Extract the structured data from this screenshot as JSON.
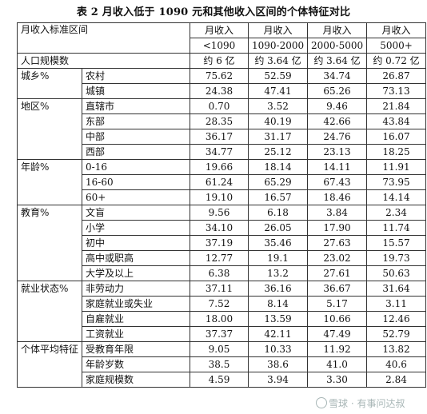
{
  "title": "表 2 月收入低于 1090 元和其他收入区间的个体特征对比",
  "header": {
    "label": "月收入标准区间",
    "cols": [
      {
        "l1": "月收入",
        "l2": "<1090"
      },
      {
        "l1": "月收入",
        "l2": "1090-2000"
      },
      {
        "l1": "月收入",
        "l2": "2000-5000"
      },
      {
        "l1": "月收入",
        "l2": "5000+"
      }
    ]
  },
  "population": {
    "label": "人口规模数",
    "values": [
      "约 6 亿",
      "约 3.64 亿",
      "约 3.64 亿",
      "约 0.72 亿"
    ]
  },
  "groups": [
    {
      "name": "城乡%",
      "rows": [
        {
          "label": "农村",
          "values": [
            "75.62",
            "52.59",
            "34.74",
            "26.87"
          ]
        },
        {
          "label": "城镇",
          "values": [
            "24.38",
            "47.41",
            "65.26",
            "73.13"
          ]
        }
      ]
    },
    {
      "name": "地区%",
      "rows": [
        {
          "label": "直辖市",
          "values": [
            "0.70",
            "3.52",
            "9.46",
            "21.84"
          ]
        },
        {
          "label": "东部",
          "values": [
            "28.35",
            "40.19",
            "42.66",
            "43.84"
          ]
        },
        {
          "label": "中部",
          "values": [
            "36.17",
            "31.17",
            "24.76",
            "16.07"
          ]
        },
        {
          "label": "西部",
          "values": [
            "34.77",
            "25.12",
            "23.13",
            "18.25"
          ]
        }
      ]
    },
    {
      "name": "年龄%",
      "rows": [
        {
          "label": "0-16",
          "values": [
            "19.66",
            "18.14",
            "14.11",
            "11.91"
          ]
        },
        {
          "label": "16-60",
          "values": [
            "61.24",
            "65.29",
            "67.43",
            "73.95"
          ]
        },
        {
          "label": "60+",
          "values": [
            "19.10",
            "16.57",
            "18.46",
            "14.14"
          ]
        }
      ]
    },
    {
      "name": "教育%",
      "rows": [
        {
          "label": "文盲",
          "values": [
            "9.56",
            "6.18",
            "3.84",
            "2.34"
          ]
        },
        {
          "label": "小学",
          "values": [
            "34.10",
            "26.05",
            "17.90",
            "11.74"
          ]
        },
        {
          "label": "初中",
          "values": [
            "37.19",
            "35.46",
            "27.63",
            "15.57"
          ]
        },
        {
          "label": "高中或职高",
          "values": [
            "12.77",
            "19.1",
            "23.02",
            "19.73"
          ]
        },
        {
          "label": "大学及以上",
          "values": [
            "6.38",
            "13.2",
            "27.61",
            "50.63"
          ]
        }
      ]
    },
    {
      "name": "就业状态%",
      "rows": [
        {
          "label": "非劳动力",
          "values": [
            "37.11",
            "36.16",
            "36.67",
            "31.64"
          ]
        },
        {
          "label": "家庭就业或失业",
          "values": [
            "7.52",
            "8.14",
            "5.17",
            "3.11"
          ]
        },
        {
          "label": "自雇就业",
          "values": [
            "18.00",
            "13.59",
            "10.66",
            "12.46"
          ]
        },
        {
          "label": "工资就业",
          "values": [
            "37.37",
            "42.11",
            "47.49",
            "52.79"
          ]
        }
      ]
    },
    {
      "name": "个体平均特征",
      "rows": [
        {
          "label": "受教育年限",
          "values": [
            "9.05",
            "10.33",
            "11.92",
            "13.82"
          ]
        },
        {
          "label": "年龄岁数",
          "values": [
            "38.5",
            "38.6",
            "41.0",
            "40.6"
          ]
        },
        {
          "label": "家庭规模数",
          "values": [
            "4.59",
            "3.94",
            "3.30",
            "2.84"
          ]
        }
      ]
    }
  ],
  "watermark": "雪球 · 有事问达叔"
}
